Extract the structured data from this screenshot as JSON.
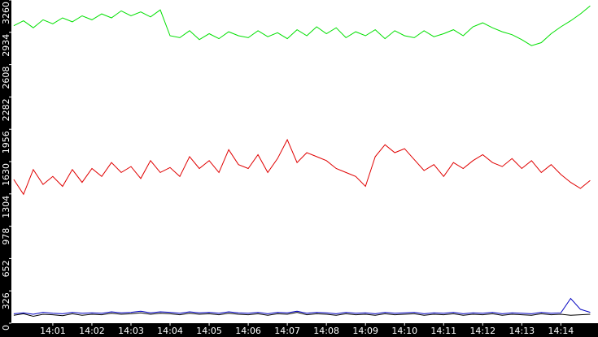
{
  "chart_data": {
    "type": "line",
    "x": [
      0,
      0.25,
      0.5,
      0.75,
      1,
      1.25,
      1.5,
      1.75,
      2,
      2.25,
      2.5,
      2.75,
      3,
      3.25,
      3.5,
      3.75,
      4,
      4.25,
      4.5,
      4.75,
      5,
      5.25,
      5.5,
      5.75,
      6,
      6.25,
      6.5,
      6.75,
      7,
      7.25,
      7.5,
      7.75,
      8,
      8.25,
      8.5,
      8.75,
      9,
      9.25,
      9.5,
      9.75,
      10,
      10.25,
      10.5,
      10.75,
      11,
      11.25,
      11.5,
      11.75,
      12,
      12.25,
      12.5,
      12.75,
      13,
      13.25,
      13.5,
      13.75,
      14,
      14.25,
      14.5,
      14.75
    ],
    "series": [
      {
        "color": "#00e000",
        "values": [
          3000,
          3050,
          2980,
          3060,
          3020,
          3080,
          3040,
          3100,
          3060,
          3120,
          3080,
          3150,
          3100,
          3140,
          3090,
          3160,
          2900,
          2880,
          2950,
          2860,
          2920,
          2870,
          2940,
          2900,
          2880,
          2950,
          2890,
          2930,
          2870,
          2960,
          2900,
          2990,
          2920,
          2980,
          2880,
          2940,
          2900,
          2960,
          2870,
          2950,
          2900,
          2880,
          2950,
          2890,
          2920,
          2960,
          2900,
          2990,
          3030,
          2980,
          2940,
          2910,
          2860,
          2800,
          2830,
          2920,
          2990,
          3050,
          3120,
          3200
        ]
      },
      {
        "color": "#e00000",
        "values": [
          1450,
          1300,
          1550,
          1400,
          1480,
          1380,
          1550,
          1420,
          1560,
          1480,
          1620,
          1520,
          1580,
          1460,
          1640,
          1520,
          1570,
          1480,
          1680,
          1560,
          1640,
          1520,
          1750,
          1600,
          1560,
          1700,
          1520,
          1660,
          1850,
          1620,
          1720,
          1680,
          1640,
          1560,
          1520,
          1480,
          1380,
          1680,
          1800,
          1720,
          1760,
          1650,
          1540,
          1600,
          1480,
          1620,
          1560,
          1640,
          1700,
          1620,
          1580,
          1660,
          1560,
          1640,
          1520,
          1600,
          1500,
          1420,
          1360,
          1440
        ]
      },
      {
        "color": "#000000",
        "values": [
          80,
          95,
          70,
          90,
          85,
          75,
          95,
          80,
          90,
          85,
          100,
          90,
          95,
          105,
          90,
          100,
          95,
          85,
          100,
          90,
          95,
          85,
          100,
          90,
          85,
          95,
          80,
          95,
          90,
          110,
          85,
          95,
          90,
          80,
          95,
          85,
          90,
          80,
          95,
          85,
          90,
          95,
          80,
          90,
          85,
          95,
          80,
          90,
          85,
          95,
          80,
          90,
          85,
          80,
          95,
          85,
          90,
          80,
          85,
          90
        ]
      },
      {
        "color": "#0000c0",
        "values": [
          95,
          105,
          90,
          110,
          100,
          95,
          110,
          100,
          105,
          100,
          115,
          105,
          110,
          120,
          105,
          115,
          110,
          100,
          115,
          105,
          110,
          100,
          115,
          105,
          100,
          110,
          95,
          110,
          105,
          120,
          100,
          110,
          105,
          95,
          110,
          100,
          105,
          95,
          110,
          100,
          105,
          110,
          95,
          105,
          100,
          110,
          95,
          105,
          100,
          110,
          95,
          105,
          100,
          95,
          110,
          100,
          105,
          250,
          140,
          110
        ]
      }
    ],
    "xlim": [
      -0.06,
      14.95
    ],
    "xticks": [
      {
        "value": 1,
        "label": "14:01"
      },
      {
        "value": 2,
        "label": "14:02"
      },
      {
        "value": 3,
        "label": "14:03"
      },
      {
        "value": 4,
        "label": "14:04"
      },
      {
        "value": 5,
        "label": "14:05"
      },
      {
        "value": 6,
        "label": "14:06"
      },
      {
        "value": 7,
        "label": "14:07"
      },
      {
        "value": 8,
        "label": "14:08"
      },
      {
        "value": 9,
        "label": "14:09"
      },
      {
        "value": 10,
        "label": "14:10"
      },
      {
        "value": 11,
        "label": "14:11"
      },
      {
        "value": 12,
        "label": "14:12"
      },
      {
        "value": 13,
        "label": "14:13"
      },
      {
        "value": 14,
        "label": "14:14"
      }
    ],
    "ylim": [
      0,
      3260
    ],
    "yticks": [
      0,
      326,
      652,
      978,
      1304,
      1630,
      1956,
      2282,
      2608,
      2934,
      3260
    ]
  }
}
